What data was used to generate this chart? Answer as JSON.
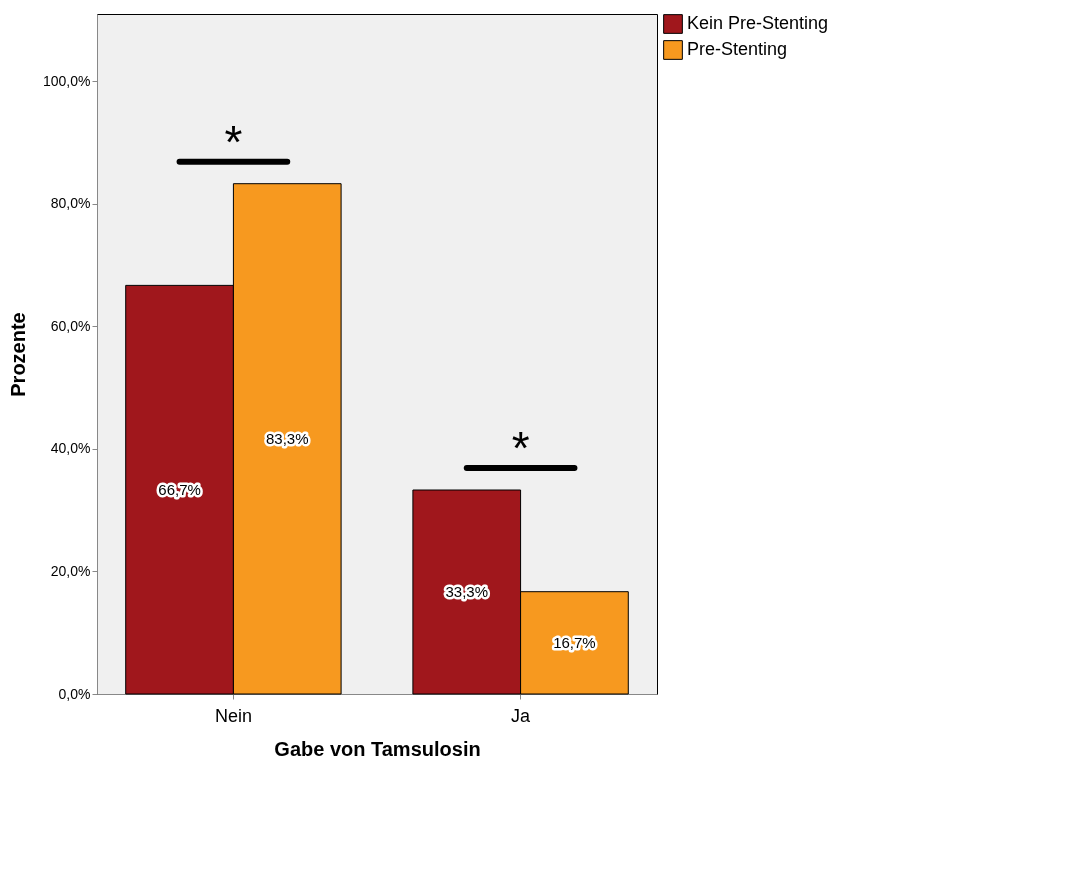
{
  "chart_data": {
    "type": "bar",
    "xlabel": "Gabe von Tamsulosin",
    "ylabel": "Prozente",
    "categories": [
      "Nein",
      "Ja"
    ],
    "series": [
      {
        "name": "Kein Pre-Stenting",
        "color": "#a0171c",
        "values": [
          66.7,
          33.3
        ],
        "value_labels": [
          "66,7%",
          "33,3%"
        ]
      },
      {
        "name": "Pre-Stenting",
        "color": "#f7991f",
        "values": [
          83.3,
          16.7
        ],
        "value_labels": [
          "83,3%",
          "16,7%"
        ]
      }
    ],
    "ylim": [
      0,
      111
    ],
    "yticks": [
      {
        "value": 0,
        "label": "0,0%"
      },
      {
        "value": 20,
        "label": "20,0%"
      },
      {
        "value": 40,
        "label": "40,0%"
      },
      {
        "value": 60,
        "label": "60,0%"
      },
      {
        "value": 80,
        "label": "80,0%"
      },
      {
        "value": 100,
        "label": "100,0%"
      }
    ],
    "annotations": [
      "*",
      "*"
    ],
    "grid": false,
    "legend": "top right"
  }
}
